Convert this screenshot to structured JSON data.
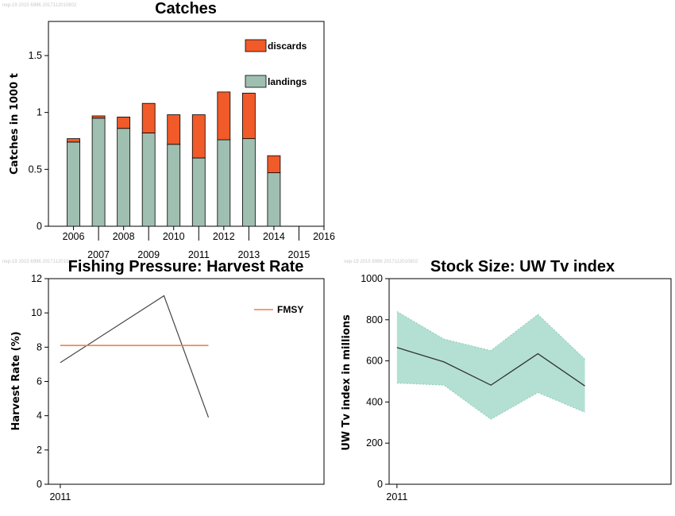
{
  "watermarks": [
    "nep-19 2015 6996 2017112010802",
    "nep-19 2015 6996 2017112010802",
    "nep-19 2015 6996 2017112010802"
  ],
  "chart_data": [
    {
      "type": "bar",
      "stacked": true,
      "title": "Catches",
      "ylabel": "Catches in 1000 t",
      "xlabel": "",
      "xlim": [
        2005,
        2016
      ],
      "ylim": [
        0,
        1.8
      ],
      "yticks": [
        0,
        0.5,
        1,
        1.5
      ],
      "ytick_labels": [
        "0",
        "0.5",
        "1",
        "1.5"
      ],
      "xticks": [
        2006,
        2007,
        2008,
        2009,
        2010,
        2011,
        2012,
        2013,
        2014,
        2015,
        2016
      ],
      "xtick_labels": [
        "2006",
        "2007",
        "2008",
        "2009",
        "2010",
        "2011",
        "2012",
        "2013",
        "2014",
        "2015",
        "2016"
      ],
      "categories": [
        2006,
        2007,
        2008,
        2009,
        2010,
        2011,
        2012,
        2013,
        2014
      ],
      "series": [
        {
          "name": "landings",
          "color": "#9fbfb1",
          "values": [
            0.74,
            0.95,
            0.86,
            0.82,
            0.72,
            0.6,
            0.76,
            0.77,
            0.47
          ]
        },
        {
          "name": "discards",
          "color": "#f15a29",
          "values": [
            0.03,
            0.02,
            0.1,
            0.26,
            0.26,
            0.38,
            0.42,
            0.4,
            0.15
          ]
        }
      ],
      "legend": [
        "discards",
        "landings"
      ],
      "legend_position": "top-right",
      "grid": false
    },
    {
      "type": "line",
      "title": "Fishing Pressure: Harvest Rate",
      "ylabel": "Harvest Rate (%)",
      "xlabel": "",
      "xlim": [
        2010.6,
        2019.9
      ],
      "ylim": [
        0,
        12
      ],
      "yticks": [
        0,
        2,
        4,
        6,
        8,
        10,
        12
      ],
      "ytick_labels": [
        "0",
        "2",
        "4",
        "6",
        "8",
        "10",
        "12"
      ],
      "xticks": [
        2011
      ],
      "xtick_labels": [
        "2011"
      ],
      "series": [
        {
          "name": "",
          "color": "#444444",
          "x": [
            2011,
            2014.5,
            2016
          ],
          "values": [
            7.1,
            11.0,
            3.9
          ]
        },
        {
          "name": "FMSY",
          "color": "#f47f4a",
          "x": [
            2011,
            2016
          ],
          "values": [
            8.1,
            8.1
          ]
        }
      ],
      "legend": [
        "FMSY"
      ],
      "legend_position": "top-right",
      "grid": false
    },
    {
      "type": "area",
      "title": "Stock Size: UW Tv index",
      "ylabel": "UW Tv index in millions",
      "xlabel": "",
      "xlim": [
        2010.9,
        2014.5
      ],
      "ylim": [
        0,
        1000
      ],
      "yticks": [
        0,
        200,
        400,
        600,
        800,
        1000
      ],
      "ytick_labels": [
        "0",
        "200",
        "400",
        "600",
        "800",
        "1000"
      ],
      "xticks": [
        2011
      ],
      "xtick_labels": [
        "2011"
      ],
      "x": [
        2011,
        2011.6,
        2012.2,
        2012.8,
        2013.4
      ],
      "series": [
        {
          "name": "",
          "role": "estimate",
          "color": "#333333",
          "values": [
            665,
            595,
            482,
            635,
            478
          ]
        },
        {
          "name": "",
          "role": "upper",
          "color": "#b3e0d2",
          "values": [
            840,
            706,
            650,
            826,
            608
          ]
        },
        {
          "name": "",
          "role": "lower",
          "color": "#b3e0d2",
          "values": [
            492,
            482,
            316,
            446,
            350
          ]
        }
      ],
      "grid": false
    }
  ]
}
